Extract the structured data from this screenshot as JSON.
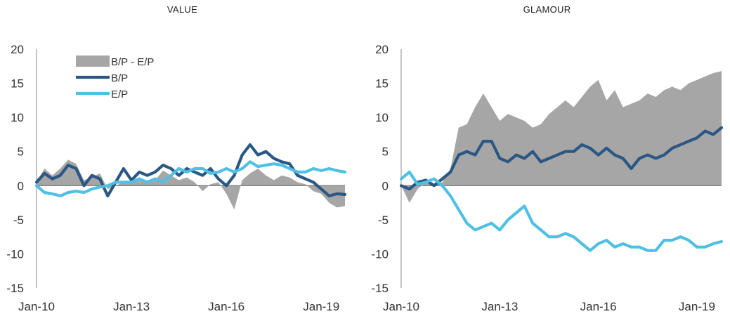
{
  "chart_data": [
    {
      "type": "area+line",
      "title": "VALUE",
      "xlabel": "",
      "ylabel": "",
      "ylim": [
        -15,
        20
      ],
      "yticks": [
        -15,
        -10,
        -5,
        0,
        5,
        10,
        15,
        20
      ],
      "xlim": [
        "2010-01",
        "2019-10"
      ],
      "xticks": [
        "Jan-10",
        "Jan-13",
        "Jan-16",
        "Jan-19"
      ],
      "legend": {
        "position": "top-left",
        "entries": [
          "B/P - E/P",
          "B/P",
          "E/P"
        ]
      },
      "x": [
        "2010-01",
        "2010-04",
        "2010-07",
        "2010-10",
        "2011-01",
        "2011-04",
        "2011-07",
        "2011-10",
        "2012-01",
        "2012-04",
        "2012-07",
        "2012-10",
        "2013-01",
        "2013-04",
        "2013-07",
        "2013-10",
        "2014-01",
        "2014-04",
        "2014-07",
        "2014-10",
        "2015-01",
        "2015-04",
        "2015-07",
        "2015-10",
        "2016-01",
        "2016-04",
        "2016-07",
        "2016-10",
        "2017-01",
        "2017-04",
        "2017-07",
        "2017-10",
        "2018-01",
        "2018-04",
        "2018-07",
        "2018-10",
        "2019-01",
        "2019-04",
        "2019-07",
        "2019-10"
      ],
      "series": [
        {
          "name": "B/P - E/P",
          "kind": "area",
          "color": "#a6a6a6",
          "values": [
            0.5,
            2.5,
            1.5,
            2.5,
            3.8,
            3.2,
            0.8,
            1.2,
            1.8,
            -0.5,
            0,
            0.5,
            0.3,
            0.8,
            0.5,
            0.8,
            2.2,
            1.5,
            0.8,
            1.2,
            0.5,
            -0.8,
            0.2,
            0.5,
            -1.2,
            -3.5,
            0.8,
            1.8,
            2.5,
            1.5,
            0.8,
            1.5,
            1.2,
            0.5,
            0.2,
            -0.8,
            -1.2,
            -2.5,
            -3.2,
            -3.0
          ]
        },
        {
          "name": "B/P",
          "kind": "line",
          "color": "#2a5783",
          "values": [
            0.5,
            1.8,
            1.0,
            1.5,
            3.0,
            2.5,
            0,
            1.5,
            1.0,
            -1.5,
            0.5,
            2.5,
            0.8,
            2.0,
            1.5,
            2.0,
            3.0,
            2.5,
            1.5,
            2.5,
            2.0,
            1.5,
            2.5,
            1.0,
            0,
            1.5,
            4.5,
            6.0,
            4.5,
            5.0,
            4.0,
            3.5,
            3.2,
            1.5,
            1.0,
            0.5,
            -0.5,
            -1.5,
            -1.2,
            -1.3
          ]
        },
        {
          "name": "E/P",
          "kind": "line",
          "color": "#4fc0e3",
          "values": [
            0,
            -1.0,
            -1.2,
            -1.5,
            -1.0,
            -0.8,
            -1.0,
            -0.5,
            -0.2,
            0,
            0.5,
            0.5,
            0.5,
            1.0,
            0.5,
            1.0,
            0.5,
            1.5,
            2.5,
            2.0,
            2.5,
            2.5,
            1.8,
            2.0,
            2.5,
            2.0,
            2.5,
            3.5,
            2.8,
            3.0,
            3.2,
            3.0,
            2.5,
            2.0,
            2.0,
            2.5,
            2.2,
            2.5,
            2.2,
            2.0
          ]
        }
      ]
    },
    {
      "type": "area+line",
      "title": "GLAMOUR",
      "xlabel": "",
      "ylabel": "",
      "ylim": [
        -15,
        20
      ],
      "yticks": [
        -15,
        -10,
        -5,
        0,
        5,
        10,
        15,
        20
      ],
      "xlim": [
        "2010-01",
        "2019-10"
      ],
      "xticks": [
        "Jan-10",
        "Jan-13",
        "Jan-16",
        "Jan-19"
      ],
      "x": [
        "2010-01",
        "2010-04",
        "2010-07",
        "2010-10",
        "2011-01",
        "2011-04",
        "2011-07",
        "2011-10",
        "2012-01",
        "2012-04",
        "2012-07",
        "2012-10",
        "2013-01",
        "2013-04",
        "2013-07",
        "2013-10",
        "2014-01",
        "2014-04",
        "2014-07",
        "2014-10",
        "2015-01",
        "2015-04",
        "2015-07",
        "2015-10",
        "2016-01",
        "2016-04",
        "2016-07",
        "2016-10",
        "2017-01",
        "2017-04",
        "2017-07",
        "2017-10",
        "2018-01",
        "2018-04",
        "2018-07",
        "2018-10",
        "2019-01",
        "2019-04",
        "2019-07",
        "2019-10"
      ],
      "series": [
        {
          "name": "B/P - E/P",
          "kind": "area",
          "color": "#a6a6a6",
          "values": [
            0,
            -2.5,
            -0.5,
            0.5,
            0,
            0.5,
            2.5,
            8.5,
            9.0,
            11.5,
            13.5,
            11.5,
            9.5,
            10.5,
            10.0,
            9.5,
            8.5,
            9.0,
            10.5,
            11.5,
            12.5,
            11.5,
            13.0,
            14.5,
            15.5,
            12.5,
            14.0,
            11.5,
            12.0,
            12.5,
            13.5,
            13.0,
            14.0,
            14.5,
            14.0,
            15.0,
            15.5,
            16.0,
            16.5,
            16.8
          ]
        },
        {
          "name": "B/P",
          "kind": "line",
          "color": "#2a5783",
          "values": [
            0,
            -0.5,
            0.5,
            0.8,
            0,
            1.0,
            2.0,
            4.5,
            5.0,
            4.5,
            6.5,
            6.5,
            4.0,
            3.5,
            4.5,
            4.0,
            5.0,
            3.5,
            4.0,
            4.5,
            5.0,
            5.0,
            6.0,
            5.5,
            4.5,
            5.5,
            4.5,
            4.0,
            2.5,
            4.0,
            4.5,
            4.0,
            4.5,
            5.5,
            6.0,
            6.5,
            7.0,
            8.0,
            7.5,
            8.5
          ]
        },
        {
          "name": "E/P",
          "kind": "line",
          "color": "#4fc0e3",
          "values": [
            1.0,
            2.0,
            0.2,
            0.5,
            1.0,
            0,
            -1.5,
            -3.5,
            -5.5,
            -6.5,
            -6.0,
            -5.5,
            -6.5,
            -5.0,
            -4.0,
            -3.0,
            -5.5,
            -6.5,
            -7.5,
            -7.5,
            -7.0,
            -7.5,
            -8.5,
            -9.5,
            -8.5,
            -8.0,
            -9.0,
            -8.5,
            -9.0,
            -9.0,
            -9.5,
            -9.5,
            -8.0,
            -8.0,
            -7.5,
            -8.0,
            -9.0,
            -9.0,
            -8.5,
            -8.2
          ]
        }
      ]
    }
  ]
}
